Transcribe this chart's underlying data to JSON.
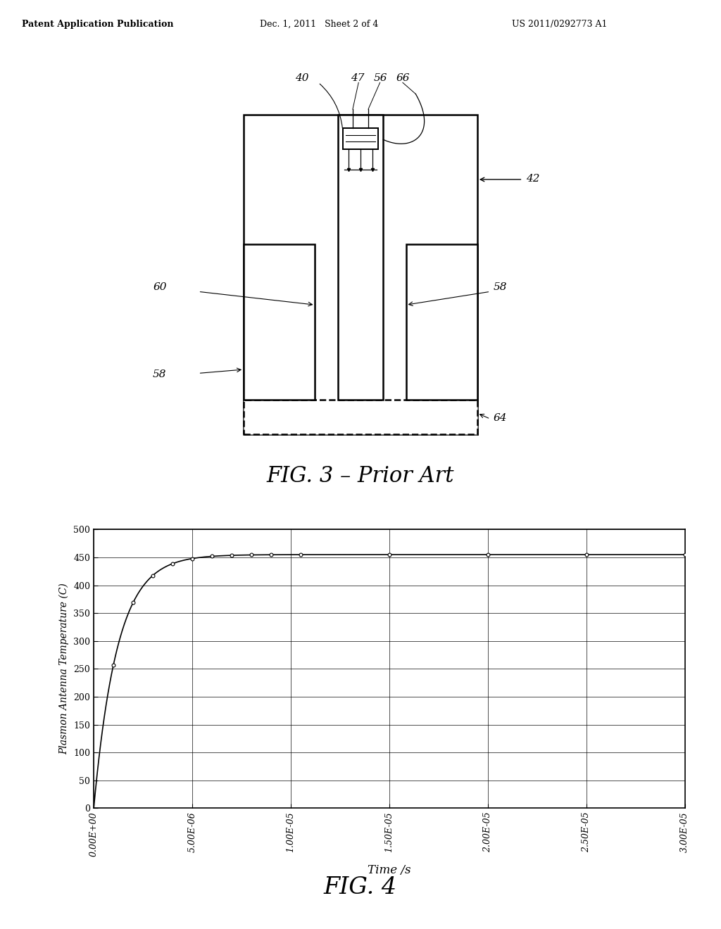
{
  "header_left": "Patent Application Publication",
  "header_mid": "Dec. 1, 2011   Sheet 2 of 4",
  "header_right": "US 2011/0292773 A1",
  "fig3_title": "FIG. 3 – Prior Art",
  "fig4_title": "FIG. 4",
  "graph_xlabel": "Time /s",
  "graph_ylabel": "Plasmon Antenna Temperature (C)",
  "graph_yticks": [
    0,
    50,
    100,
    150,
    200,
    250,
    300,
    350,
    400,
    450,
    500
  ],
  "graph_xticks": [
    "0.00E+00",
    "5.00E-06",
    "1.00E-05",
    "1.50E-05",
    "2.00E-05",
    "2.50E-05",
    "3.00E-05"
  ],
  "graph_xtick_vals": [
    0.0,
    5e-06,
    1e-05,
    1.5e-05,
    2e-05,
    2.5e-05,
    3e-05
  ],
  "graph_ylim": [
    0,
    500
  ],
  "graph_xlim": [
    0.0,
    3e-05
  ],
  "T_ss": 455,
  "tau": 1.2e-06,
  "curve_color": "#000000",
  "background_color": "#ffffff",
  "label_40": "40",
  "label_42": "42",
  "label_47": "47",
  "label_56": "56",
  "label_66": "66",
  "label_60": "60",
  "label_58a": "58",
  "label_58b": "58",
  "label_64": "64"
}
